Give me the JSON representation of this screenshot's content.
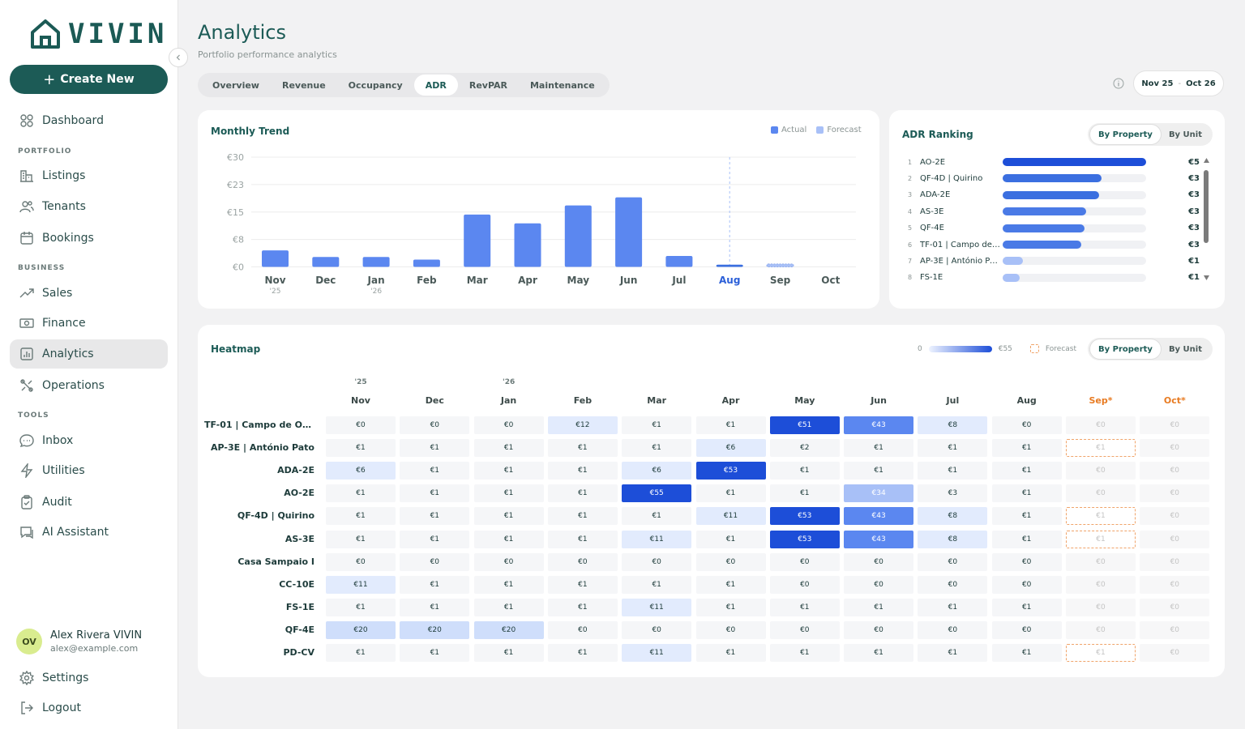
{
  "app": {
    "brand": "VIVIN"
  },
  "sidebar": {
    "create_label": "Create New",
    "dashboard": "Dashboard",
    "sections": {
      "portfolio": "PORTFOLIO",
      "business": "BUSINESS",
      "tools": "TOOLS"
    },
    "items": {
      "listings": "Listings",
      "tenants": "Tenants",
      "bookings": "Bookings",
      "sales": "Sales",
      "finance": "Finance",
      "analytics": "Analytics",
      "operations": "Operations",
      "inbox": "Inbox",
      "utilities": "Utilities",
      "audit": "Audit",
      "ai_assistant": "AI Assistant"
    },
    "user": {
      "initials": "OV",
      "name": "Alex Rivera VIVIN",
      "email": "alex@example.com"
    },
    "settings": "Settings",
    "logout": "Logout"
  },
  "header": {
    "title": "Analytics",
    "subtitle": "Portfolio performance analytics",
    "tabs": [
      "Overview",
      "Revenue",
      "Occupancy",
      "ADR",
      "RevPAR",
      "Maintenance"
    ],
    "active_tab": "ADR",
    "date_from": "Nov 25",
    "date_sep": "-",
    "date_to": "Oct 26"
  },
  "trend": {
    "title": "Monthly Trend",
    "legend_actual": "Actual",
    "legend_forecast": "Forecast",
    "colors": {
      "actual": "#5b87f0",
      "forecast": "#a8c0f7",
      "highlight": "#3b6fe0"
    }
  },
  "chart_data": {
    "type": "bar",
    "title": "Monthly Trend",
    "categories": [
      "Nov",
      "Dec",
      "Jan",
      "Feb",
      "Mar",
      "Apr",
      "May",
      "Jun",
      "Jul",
      "Aug",
      "Sep",
      "Oct"
    ],
    "year_labels": {
      "0": "'25",
      "2": "'26"
    },
    "series": [
      {
        "name": "Actual",
        "values": [
          4.5,
          2.7,
          2.7,
          2.0,
          14.3,
          11.9,
          16.8,
          19.0,
          3.0,
          0.6,
          null,
          null
        ]
      },
      {
        "name": "Forecast",
        "values": [
          null,
          null,
          null,
          null,
          null,
          null,
          null,
          null,
          null,
          null,
          0.8,
          0
        ]
      }
    ],
    "y_ticks": [
      "€0",
      "€8",
      "€15",
      "€23",
      "€30"
    ],
    "ylim": [
      0,
      30
    ],
    "highlight_category": "Aug",
    "grid": true,
    "legend": "top-right"
  },
  "ranking": {
    "title": "ADR Ranking",
    "toggle": [
      "By Property",
      "By Unit"
    ],
    "rows": [
      {
        "rank": "1",
        "name": "AO-2E",
        "value": "€5",
        "fraction": 1.0,
        "color": "#1d4ed8"
      },
      {
        "rank": "2",
        "name": "QF-4D | Quirino",
        "value": "€3",
        "fraction": 0.69,
        "color": "#3b6fe0"
      },
      {
        "rank": "3",
        "name": "ADA-2E",
        "value": "€3",
        "fraction": 0.67,
        "color": "#3b6fe0"
      },
      {
        "rank": "4",
        "name": "AS-3E",
        "value": "€3",
        "fraction": 0.58,
        "color": "#4a7ae6"
      },
      {
        "rank": "5",
        "name": "QF-4E",
        "value": "€3",
        "fraction": 0.57,
        "color": "#4a7ae6"
      },
      {
        "rank": "6",
        "name": "TF-01 | Campo de Ourique",
        "value": "€3",
        "fraction": 0.55,
        "color": "#4a7ae6"
      },
      {
        "rank": "7",
        "name": "AP-3E | António Pato",
        "value": "€1",
        "fraction": 0.14,
        "color": "#a8c0f7"
      },
      {
        "rank": "8",
        "name": "FS-1E",
        "value": "€1",
        "fraction": 0.12,
        "color": "#a8c0f7"
      }
    ]
  },
  "heatmap": {
    "title": "Heatmap",
    "legend_min": "0",
    "legend_max": "€55",
    "legend_forecast": "Forecast",
    "toggle": [
      "By Property",
      "By Unit"
    ],
    "years": {
      "0": "'25",
      "2": "'26"
    },
    "months": [
      "Nov",
      "Dec",
      "Jan",
      "Feb",
      "Mar",
      "Apr",
      "May",
      "Jun",
      "Jul",
      "Aug",
      "Sep*",
      "Oct*"
    ],
    "max": 55,
    "rows": [
      {
        "name": "TF-01 | Campo de Ourique",
        "values": [
          0,
          0,
          0,
          12,
          1,
          1,
          51,
          43,
          8,
          0,
          0,
          0
        ],
        "outlined": []
      },
      {
        "name": "AP-3E | António Pato",
        "values": [
          1,
          1,
          1,
          1,
          1,
          6,
          2,
          1,
          1,
          1,
          1,
          0
        ],
        "outlined": [
          10
        ]
      },
      {
        "name": "ADA-2E",
        "values": [
          6,
          1,
          1,
          1,
          6,
          53,
          1,
          1,
          1,
          1,
          0,
          0
        ],
        "outlined": []
      },
      {
        "name": "AO-2E",
        "values": [
          1,
          1,
          1,
          1,
          55,
          1,
          1,
          34,
          3,
          1,
          0,
          0
        ],
        "outlined": []
      },
      {
        "name": "QF-4D | Quirino",
        "values": [
          1,
          1,
          1,
          1,
          1,
          11,
          53,
          43,
          8,
          1,
          1,
          0
        ],
        "outlined": [
          10
        ]
      },
      {
        "name": "AS-3E",
        "values": [
          1,
          1,
          1,
          1,
          11,
          1,
          53,
          43,
          8,
          1,
          1,
          0
        ],
        "outlined": [
          10
        ]
      },
      {
        "name": "Casa Sampaio I",
        "values": [
          0,
          0,
          0,
          0,
          0,
          0,
          0,
          0,
          0,
          0,
          0,
          0
        ],
        "outlined": []
      },
      {
        "name": "CC-10E",
        "values": [
          11,
          1,
          1,
          1,
          1,
          1,
          0,
          0,
          0,
          0,
          0,
          0
        ],
        "outlined": []
      },
      {
        "name": "FS-1E",
        "values": [
          1,
          1,
          1,
          1,
          11,
          1,
          1,
          1,
          1,
          1,
          0,
          0
        ],
        "outlined": []
      },
      {
        "name": "QF-4E",
        "values": [
          20,
          20,
          20,
          0,
          0,
          0,
          0,
          0,
          0,
          0,
          0,
          0
        ],
        "outlined": []
      },
      {
        "name": "PD-CV",
        "values": [
          1,
          1,
          1,
          1,
          11,
          1,
          1,
          1,
          1,
          1,
          1,
          0
        ],
        "outlined": [
          10
        ]
      }
    ]
  }
}
